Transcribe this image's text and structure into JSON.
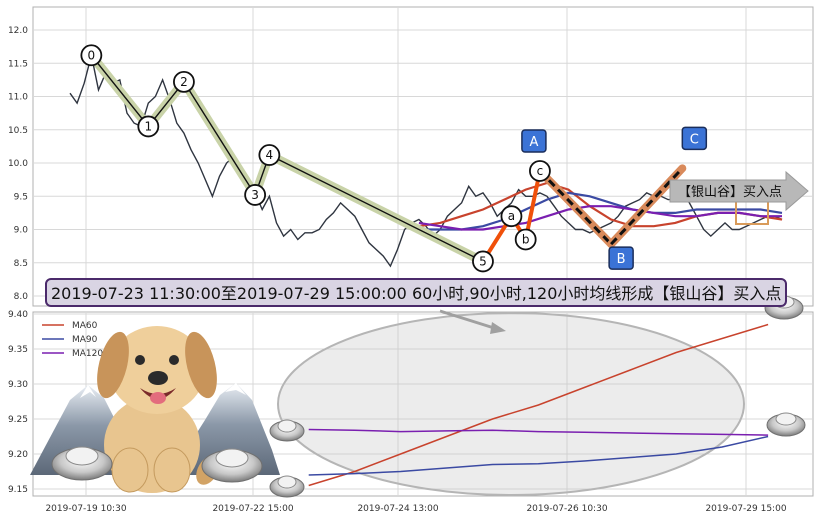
{
  "chart_data": [
    {
      "type": "line",
      "title": "",
      "ylim": [
        7.95,
        12.3
      ],
      "yticks": [
        8.0,
        8.5,
        9.0,
        9.5,
        10.0,
        10.5,
        11.0,
        11.5,
        12.0
      ],
      "ytick_labels": [
        "8.0",
        "8.5",
        "9.0",
        "9.5",
        "10.0",
        "10.5",
        "11.0",
        "11.5",
        "12.0"
      ],
      "x_range": [
        0,
        100
      ],
      "grid": true,
      "price": {
        "name": "",
        "color": "#2f3540",
        "x": [
          0,
          1,
          2,
          3,
          4,
          5,
          6,
          7,
          8,
          9,
          10,
          11,
          12,
          13,
          14,
          15,
          16,
          17,
          18,
          19,
          20,
          21,
          22,
          23,
          24,
          25,
          26,
          27,
          28,
          29,
          30,
          31,
          32,
          33,
          34,
          35,
          36,
          37,
          38,
          39,
          40,
          41,
          42,
          43,
          44,
          45,
          46,
          47,
          48,
          49,
          50,
          51,
          52,
          53,
          54,
          55,
          56,
          57,
          58,
          59,
          60,
          61,
          62,
          63,
          64,
          65,
          66,
          67,
          68,
          69,
          70,
          71,
          72,
          73,
          74,
          75,
          76,
          77,
          78,
          79,
          80,
          81,
          82,
          83,
          84,
          85,
          86,
          87,
          88,
          89,
          90,
          91,
          92,
          93,
          94,
          95,
          96,
          97,
          98,
          99,
          100
        ],
        "y": [
          11.05,
          10.9,
          11.2,
          11.62,
          11.1,
          11.35,
          11.2,
          11.25,
          10.75,
          10.6,
          10.55,
          10.9,
          11.0,
          11.25,
          10.95,
          10.6,
          10.45,
          10.2,
          10.0,
          9.75,
          9.5,
          9.8,
          10.0,
          10.1,
          9.8,
          9.75,
          9.55,
          9.3,
          9.5,
          9.1,
          8.9,
          9.0,
          8.85,
          8.95,
          8.95,
          9.0,
          9.15,
          9.25,
          9.4,
          9.3,
          9.2,
          9.0,
          8.8,
          8.7,
          8.6,
          8.45,
          8.7,
          9.0,
          9.1,
          9.15,
          9.05,
          8.9,
          9.0,
          9.2,
          9.3,
          9.4,
          9.65,
          9.5,
          9.55,
          9.4,
          9.2,
          9.3,
          9.4,
          9.6,
          9.5,
          9.5,
          9.55,
          9.5,
          9.35,
          9.2,
          9.1,
          9.0,
          9.0,
          8.95,
          9.0,
          9.05,
          9.1,
          9.2,
          9.35,
          9.4,
          9.45,
          9.55,
          9.5,
          9.5,
          9.45,
          9.45,
          9.55,
          9.4,
          9.2,
          9.0,
          8.9,
          9.0,
          9.1,
          9.0,
          9.0,
          9.05,
          9.1,
          9.15,
          9.2,
          9.2,
          9.15
        ]
      },
      "ma_lines": [
        {
          "name": "MA60",
          "color": "#c8432d",
          "x": [
            49,
            52,
            55,
            58,
            61,
            64,
            67,
            70,
            73,
            76,
            79,
            82,
            85,
            88,
            91,
            94,
            97,
            100
          ],
          "y": [
            9.05,
            9.1,
            9.2,
            9.3,
            9.45,
            9.6,
            9.7,
            9.6,
            9.35,
            9.15,
            9.05,
            9.05,
            9.1,
            9.2,
            9.25,
            9.25,
            9.2,
            9.15
          ]
        },
        {
          "name": "MA90",
          "color": "#3b4aa3",
          "x": [
            49,
            52,
            55,
            58,
            61,
            64,
            67,
            70,
            73,
            76,
            79,
            82,
            85,
            88,
            91,
            94,
            97,
            100
          ],
          "y": [
            9.0,
            9.0,
            9.0,
            9.05,
            9.15,
            9.3,
            9.45,
            9.55,
            9.5,
            9.4,
            9.3,
            9.25,
            9.25,
            9.3,
            9.3,
            9.3,
            9.3,
            9.25
          ]
        },
        {
          "name": "MA120",
          "color": "#7a1fb0",
          "x": [
            49,
            52,
            55,
            58,
            61,
            64,
            67,
            70,
            73,
            76,
            79,
            82,
            85,
            88,
            91,
            94,
            97,
            100
          ],
          "y": [
            9.1,
            9.05,
            9.0,
            9.0,
            9.05,
            9.1,
            9.2,
            9.3,
            9.35,
            9.35,
            9.3,
            9.25,
            9.2,
            9.2,
            9.25,
            9.25,
            9.2,
            9.2
          ]
        }
      ],
      "wave_points": [
        {
          "label": "0",
          "x": 3,
          "y": 11.62
        },
        {
          "label": "1",
          "x": 11,
          "y": 10.55
        },
        {
          "label": "2",
          "x": 16,
          "y": 11.22
        },
        {
          "label": "3",
          "x": 26,
          "y": 9.52
        },
        {
          "label": "4",
          "x": 28,
          "y": 10.12
        },
        {
          "label": "5",
          "x": 58,
          "y": 8.52
        }
      ],
      "abc_points": [
        {
          "label": "a",
          "x": 62,
          "y": 9.2
        },
        {
          "label": "b",
          "x": 64,
          "y": 8.85
        },
        {
          "label": "c",
          "x": 66,
          "y": 9.88
        }
      ],
      "abc_boxes": [
        {
          "label": "A",
          "x": 66,
          "y": 9.88
        },
        {
          "label": "B",
          "x": 76,
          "y": 8.78
        },
        {
          "label": "C",
          "x": 86,
          "y": 9.92
        }
      ],
      "annotation": "【银山谷】买入点",
      "banner": "2019-07-23 11:30:00至2019-07-29 15:00:00 60小时,90小时,120小时均线形成【银山谷】买入点"
    },
    {
      "type": "line",
      "title": "",
      "ylim": [
        9.14,
        9.4
      ],
      "yticks": [
        9.15,
        9.2,
        9.25,
        9.3,
        9.35,
        9.4
      ],
      "ytick_labels": [
        "9.15",
        "9.20",
        "9.25",
        "9.30",
        "9.35",
        "9.40"
      ],
      "categories": [
        "2019-07-19 10:30",
        "2019-07-22 15:00",
        "2019-07-24 13:00",
        "2019-07-26 10:30",
        "2019-07-29 15:00"
      ],
      "legend": "top-left",
      "grid": true,
      "series": [
        {
          "name": "MA60",
          "color": "#c8432d",
          "x": [
            0,
            10,
            20,
            30,
            40,
            50,
            60,
            70,
            80,
            90,
            100
          ],
          "y": [
            9.155,
            9.175,
            9.2,
            9.225,
            9.25,
            9.27,
            9.295,
            9.32,
            9.345,
            9.365,
            9.385
          ]
        },
        {
          "name": "MA90",
          "color": "#3b4aa3",
          "x": [
            0,
            10,
            20,
            30,
            40,
            50,
            60,
            70,
            80,
            90,
            100
          ],
          "y": [
            9.17,
            9.172,
            9.175,
            9.18,
            9.185,
            9.186,
            9.19,
            9.195,
            9.2,
            9.21,
            9.225
          ]
        },
        {
          "name": "MA120",
          "color": "#7a1fb0",
          "x": [
            0,
            10,
            20,
            30,
            40,
            50,
            60,
            70,
            80,
            90,
            100
          ],
          "y": [
            9.235,
            9.234,
            9.232,
            9.233,
            9.234,
            9.232,
            9.231,
            9.23,
            9.229,
            9.228,
            9.227
          ]
        }
      ]
    }
  ]
}
